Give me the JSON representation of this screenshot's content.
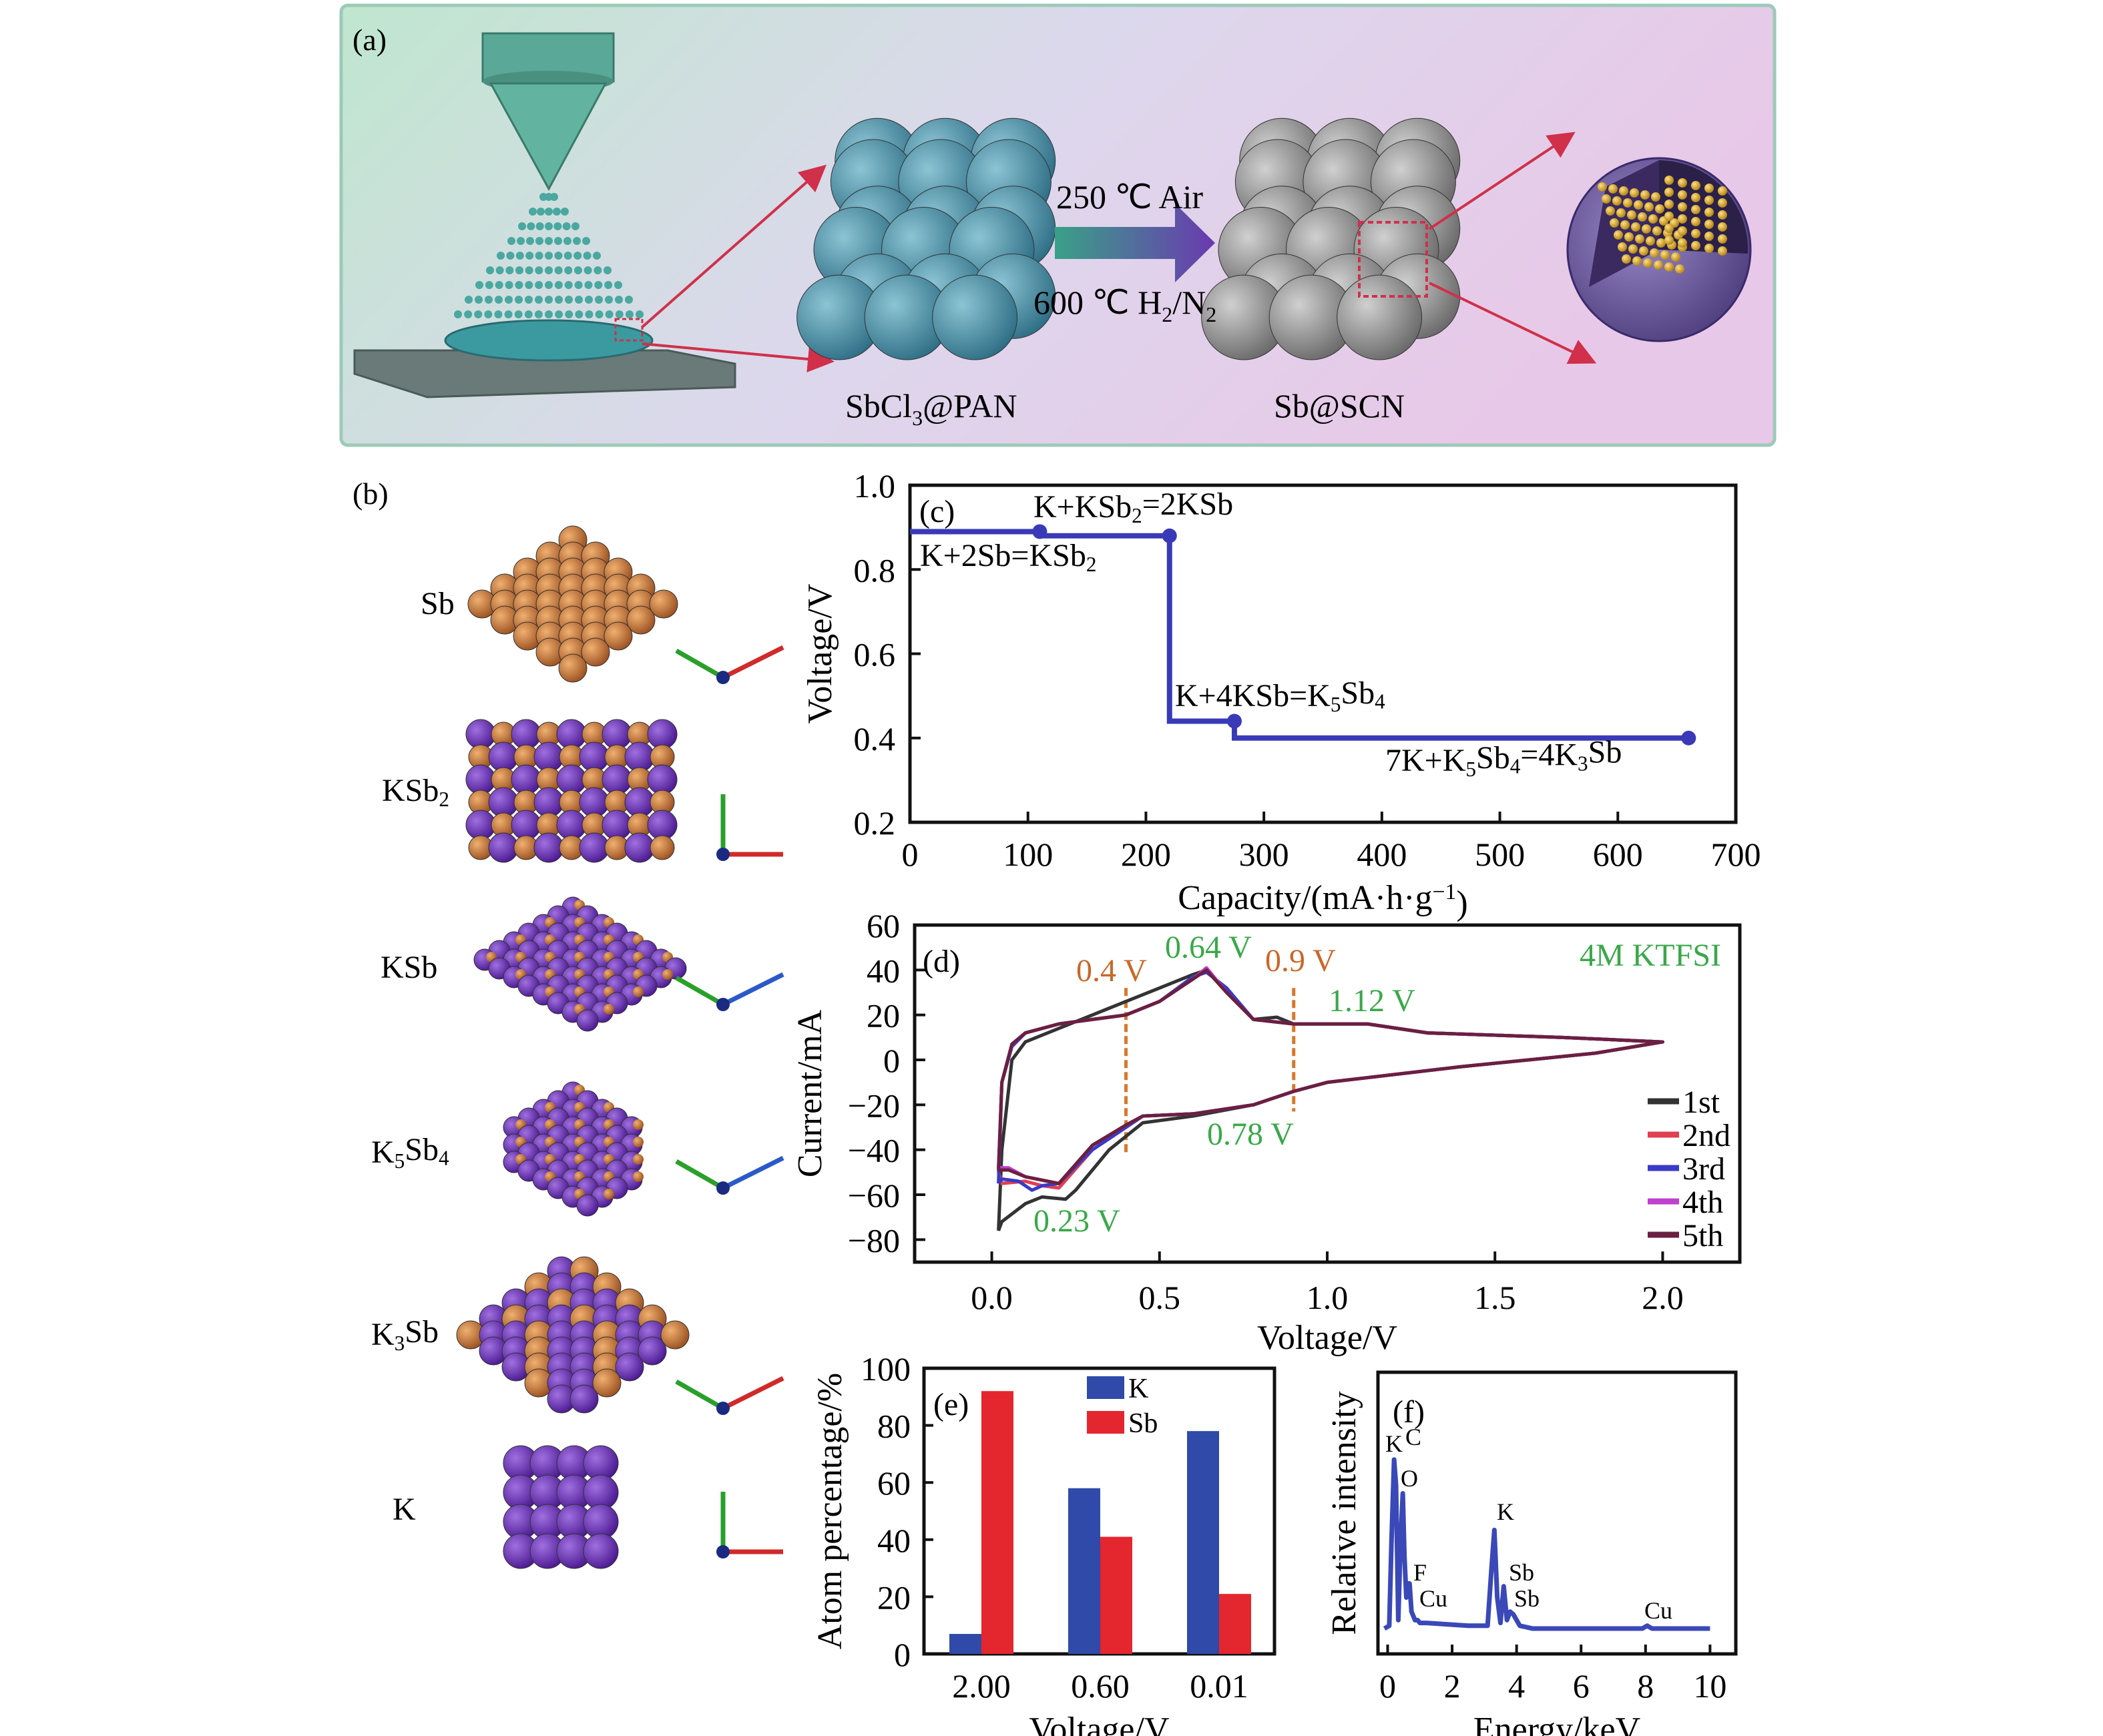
{
  "panel_a": {
    "label": "(a)",
    "condition_1": "250 ℃ Air",
    "condition_2_main": "600 ℃ H",
    "condition_2_sub1": "2",
    "condition_2_mid": "/N",
    "condition_2_sub2": "2",
    "precursor_main": "SbCl",
    "precursor_sub": "3",
    "precursor_rest": "@PAN",
    "product": "Sb@SCN",
    "colors": {
      "teal": "#4a93a6",
      "gray": "#8a8a8a",
      "arrow_red": "#d0304a",
      "sphere_purple": "#6a5a9a",
      "dot_gold": "#d8b030"
    }
  },
  "panel_b": {
    "label": "(b)",
    "structures": [
      {
        "name": "Sb",
        "sub": "",
        "rest": ""
      },
      {
        "name": "KSb",
        "sub": "2",
        "rest": ""
      },
      {
        "name": "KSb",
        "sub": "",
        "rest": ""
      },
      {
        "name": "K",
        "sub": "5",
        "rest": "Sb",
        "sub2": "4"
      },
      {
        "name": "K",
        "sub": "3",
        "rest": "Sb"
      },
      {
        "name": "K",
        "sub": "",
        "rest": ""
      }
    ],
    "colors": {
      "Sb": "#c8783a",
      "K": "#6a30b4"
    }
  },
  "chart_data": [
    {
      "panel": "(c)",
      "type": "line",
      "xlabel": "Capacity/(mA·h·g",
      "xlabel_sup": "−1",
      "xlabel_end": ")",
      "ylabel": "Voltage/V",
      "xlim": [
        0,
        700
      ],
      "ylim": [
        0.2,
        1.0
      ],
      "xticks": [
        "0",
        "100",
        "200",
        "300",
        "400",
        "500",
        "600",
        "700"
      ],
      "yticks": [
        "0.2",
        "0.4",
        "0.6",
        "0.8",
        "1.0"
      ],
      "color": "#3a3ab8",
      "series": [
        {
          "x": [
            0,
            110,
            110,
            220,
            220,
            275,
            275,
            660
          ],
          "y": [
            0.89,
            0.89,
            0.88,
            0.88,
            0.44,
            0.44,
            0.4,
            0.4
          ]
        }
      ],
      "markers": [
        {
          "x": 110,
          "y": 0.89
        },
        {
          "x": 220,
          "y": 0.88
        },
        {
          "x": 275,
          "y": 0.44
        },
        {
          "x": 660,
          "y": 0.4
        }
      ],
      "annotations": [
        {
          "text": "K+KSb",
          "sub": "2",
          "rest": "=2KSb"
        },
        {
          "text": "K+2Sb=KSb",
          "sub": "2",
          "rest": ""
        },
        {
          "text": "K+4KSb=K",
          "sub": "5",
          "rest": "Sb",
          "sub2": "4"
        },
        {
          "text": "7K+K",
          "sub": "5",
          "rest": "Sb",
          "sub2": "4",
          "rest2": "=4K",
          "sub3": "3",
          "rest3": "Sb"
        }
      ]
    },
    {
      "panel": "(d)",
      "type": "line",
      "xlabel": "Voltage/V",
      "ylabel": "Current/mA",
      "xlim": [
        -0.23,
        2.23
      ],
      "ylim": [
        -90,
        60
      ],
      "xticks": [
        "0.0",
        "0.5",
        "1.0",
        "1.5",
        "2.0"
      ],
      "yticks": [
        "60",
        "40",
        "20",
        "0",
        "−20",
        "−40",
        "−60",
        "−80"
      ],
      "electrolyte": "4M KTFSI",
      "peak_labels": [
        {
          "text": "0.4 V",
          "color": "#c8682a"
        },
        {
          "text": "0.64 V",
          "color": "#3aa84a"
        },
        {
          "text": "0.9 V",
          "color": "#c8682a"
        },
        {
          "text": "1.12 V",
          "color": "#3aa84a"
        },
        {
          "text": "0.78 V",
          "color": "#3aa84a"
        },
        {
          "text": "0.23 V",
          "color": "#3aa84a"
        }
      ],
      "dashed_markers_V": [
        0.4,
        0.9
      ],
      "series": [
        {
          "name": "1st",
          "color": "#333333",
          "x": [
            0.02,
            0.03,
            0.06,
            0.1,
            0.2,
            0.3,
            0.4,
            0.5,
            0.6,
            0.64,
            0.7,
            0.78,
            0.85,
            0.9,
            1.12,
            1.3,
            1.7,
            2.0,
            1.8,
            1.4,
            1.0,
            0.9,
            0.78,
            0.6,
            0.45,
            0.35,
            0.25,
            0.22,
            0.15,
            0.1,
            0.03,
            0.02
          ],
          "y": [
            -76,
            -40,
            0,
            8,
            14,
            20,
            26,
            32,
            38,
            40,
            30,
            18,
            19,
            16,
            16,
            12,
            10,
            8,
            3,
            -3,
            -10,
            -14,
            -20,
            -25,
            -28,
            -40,
            -58,
            -62,
            -61,
            -64,
            -72,
            -76
          ]
        },
        {
          "name": "2nd",
          "color": "#e04050",
          "x": [
            0.02,
            0.03,
            0.06,
            0.1,
            0.2,
            0.3,
            0.4,
            0.5,
            0.6,
            0.64,
            0.7,
            0.78,
            0.9,
            1.12,
            1.3,
            1.7,
            2.0,
            1.8,
            1.4,
            1.0,
            0.9,
            0.78,
            0.6,
            0.45,
            0.4,
            0.3,
            0.2,
            0.15,
            0.1,
            0.03,
            0.02
          ],
          "y": [
            -50,
            -10,
            6,
            12,
            16,
            18,
            20,
            26,
            36,
            40,
            30,
            18,
            16,
            16,
            12,
            10,
            8,
            3,
            -3,
            -10,
            -14,
            -20,
            -24,
            -25,
            -30,
            -40,
            -57,
            -56,
            -54,
            -55,
            -50
          ]
        },
        {
          "name": "3rd",
          "color": "#3a3ac8",
          "x": [
            0.02,
            0.03,
            0.06,
            0.1,
            0.2,
            0.3,
            0.4,
            0.5,
            0.6,
            0.64,
            0.7,
            0.78,
            0.9,
            1.12,
            1.3,
            1.7,
            2.0,
            1.8,
            1.4,
            1.0,
            0.9,
            0.78,
            0.6,
            0.45,
            0.4,
            0.3,
            0.2,
            0.15,
            0.12,
            0.08,
            0.03,
            0.02
          ],
          "y": [
            -55,
            -10,
            6,
            12,
            16,
            18,
            20,
            26,
            37,
            39,
            32,
            18,
            16,
            16,
            12,
            10,
            8,
            3,
            -3,
            -10,
            -14,
            -20,
            -24,
            -25,
            -30,
            -40,
            -55,
            -56,
            -58,
            -54,
            -53,
            -55
          ]
        },
        {
          "name": "4th",
          "color": "#c040d0",
          "x": [
            0.02,
            0.03,
            0.06,
            0.1,
            0.2,
            0.3,
            0.4,
            0.5,
            0.6,
            0.64,
            0.7,
            0.78,
            0.9,
            1.12,
            1.3,
            1.7,
            2.0,
            1.8,
            1.4,
            1.0,
            0.9,
            0.78,
            0.6,
            0.45,
            0.4,
            0.3,
            0.2,
            0.1,
            0.05,
            0.02
          ],
          "y": [
            -48,
            -10,
            7,
            12,
            16,
            18,
            20,
            26,
            36,
            41,
            30,
            18,
            16,
            16,
            12,
            10,
            8,
            3,
            -3,
            -10,
            -14,
            -20,
            -24,
            -25,
            -29,
            -38,
            -55,
            -52,
            -48,
            -48
          ]
        },
        {
          "name": "5th",
          "color": "#6a2040",
          "x": [
            0.02,
            0.03,
            0.06,
            0.1,
            0.2,
            0.3,
            0.4,
            0.5,
            0.6,
            0.64,
            0.7,
            0.78,
            0.9,
            1.12,
            1.3,
            1.7,
            2.0,
            1.8,
            1.4,
            1.0,
            0.9,
            0.78,
            0.6,
            0.45,
            0.4,
            0.3,
            0.2,
            0.1,
            0.05,
            0.02
          ],
          "y": [
            -49,
            -10,
            7,
            12,
            16,
            18,
            20,
            26,
            36,
            40,
            30,
            18,
            16,
            16,
            12,
            10,
            8,
            3,
            -3,
            -10,
            -14,
            -20,
            -24,
            -25,
            -29,
            -38,
            -55,
            -52,
            -49,
            -49
          ]
        }
      ],
      "legend": "bottom-right"
    },
    {
      "panel": "(e)",
      "type": "bar",
      "xlabel": "Voltage/V",
      "ylabel": "Atom percentage/%",
      "categories": [
        "2.00",
        "0.60",
        "0.01"
      ],
      "ylim": [
        0,
        100
      ],
      "yticks": [
        "0",
        "20",
        "40",
        "60",
        "80",
        "100"
      ],
      "series": [
        {
          "name": "K",
          "color": "#2f4aa8",
          "values": [
            7,
            58,
            78
          ]
        },
        {
          "name": "Sb",
          "color": "#e4262e",
          "values": [
            92,
            41,
            21
          ]
        }
      ],
      "legend": "top-center"
    },
    {
      "panel": "(f)",
      "type": "line",
      "xlabel": "Energy/keV",
      "ylabel": "Relative intensity",
      "xlim": [
        -0.3,
        10.8
      ],
      "ylim": [
        0,
        100
      ],
      "xticks": [
        "0",
        "2",
        "4",
        "6",
        "8",
        "10"
      ],
      "color": "#3a48b8",
      "series": [
        {
          "x": [
            -0.1,
            0.05,
            0.12,
            0.2,
            0.26,
            0.33,
            0.4,
            0.47,
            0.52,
            0.58,
            0.63,
            0.68,
            0.74,
            0.85,
            0.93,
            1.0,
            1.2,
            2.5,
            3.1,
            3.22,
            3.31,
            3.4,
            3.5,
            3.6,
            3.7,
            3.8,
            3.9,
            4.1,
            4.5,
            6,
            7.9,
            8.05,
            8.2,
            10
          ],
          "y": [
            9,
            10,
            40,
            69,
            60,
            12,
            40,
            57,
            35,
            20,
            25,
            25,
            15,
            12,
            12,
            11,
            11,
            10,
            10,
            30,
            44,
            20,
            11,
            24,
            12,
            15,
            14,
            10,
            9,
            9,
            9,
            10,
            9,
            9
          ]
        }
      ],
      "peak_labels": [
        "K",
        "C",
        "O",
        "F",
        "Cu",
        "K",
        "Sb",
        "Sb",
        "Cu"
      ]
    }
  ]
}
